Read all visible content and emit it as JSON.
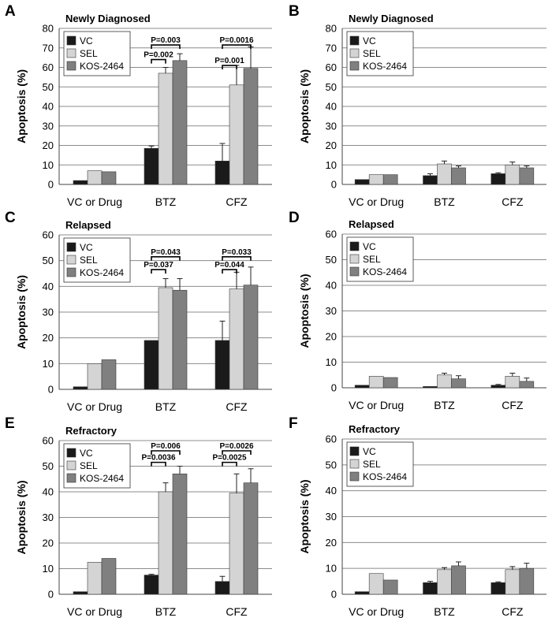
{
  "colors": {
    "VC": "#1a1a1a",
    "SEL": "#d4d4d4",
    "KOS-2464": "#808080",
    "grid": "#8c8c8c",
    "axis": "#444444"
  },
  "chart_data": [
    {
      "type": "bar",
      "panel": "A",
      "title": "Newly Diagnosed",
      "categories": [
        "VC or Drug",
        "BTZ",
        "CFZ"
      ],
      "ylabel": "Apoptosis (%)",
      "ylim": [
        0,
        80
      ],
      "yticks": [
        0,
        10,
        20,
        30,
        40,
        50,
        60,
        70,
        80
      ],
      "legend": [
        "VC",
        "SEL",
        "KOS-2464"
      ],
      "series": [
        {
          "name": "VC",
          "values": [
            2,
            18.5,
            12
          ],
          "errors": [
            0,
            1.2,
            9
          ]
        },
        {
          "name": "SEL",
          "values": [
            7,
            57,
            51
          ],
          "errors": [
            0,
            3,
            10
          ]
        },
        {
          "name": "KOS-2464",
          "values": [
            6.5,
            63.5,
            59.5
          ],
          "errors": [
            0,
            3.5,
            11
          ]
        }
      ],
      "annotations": [
        {
          "cat": 1,
          "from": 0,
          "to": 1,
          "y": 64,
          "text": "P=0.002"
        },
        {
          "cat": 1,
          "from": 0,
          "to": 2,
          "y": 71.5,
          "text": "P=0.003"
        },
        {
          "cat": 2,
          "from": 0,
          "to": 1,
          "y": 61,
          "text": "P=0.001"
        },
        {
          "cat": 2,
          "from": 0,
          "to": 2,
          "y": 71.5,
          "text": "P=0.0016"
        }
      ]
    },
    {
      "type": "bar",
      "panel": "B",
      "title": "Newly Diagnosed",
      "categories": [
        "VC or Drug",
        "BTZ",
        "CFZ"
      ],
      "ylabel": "Apoptosis (%)",
      "ylim": [
        0,
        80
      ],
      "yticks": [
        0,
        10,
        20,
        30,
        40,
        50,
        60,
        70,
        80
      ],
      "legend": [
        "VC",
        "SEL",
        "KOS-2464"
      ],
      "series": [
        {
          "name": "VC",
          "values": [
            2.5,
            4.5,
            5.5
          ],
          "errors": [
            0,
            1,
            0.5
          ]
        },
        {
          "name": "SEL",
          "values": [
            5,
            10.5,
            10
          ],
          "errors": [
            0,
            1.5,
            1.5
          ]
        },
        {
          "name": "KOS-2464",
          "values": [
            5,
            8.5,
            8.5
          ],
          "errors": [
            0,
            1,
            1
          ]
        }
      ],
      "annotations": []
    },
    {
      "type": "bar",
      "panel": "C",
      "title": "Relapsed",
      "categories": [
        "VC or Drug",
        "BTZ",
        "CFZ"
      ],
      "ylabel": "Apoptosis (%)",
      "ylim": [
        0,
        60
      ],
      "yticks": [
        0,
        10,
        20,
        30,
        40,
        50,
        60
      ],
      "legend": [
        "VC",
        "SEL",
        "KOS-2464"
      ],
      "series": [
        {
          "name": "VC",
          "values": [
            1,
            19,
            19
          ],
          "errors": [
            0,
            0,
            7.5
          ]
        },
        {
          "name": "SEL",
          "values": [
            10,
            39.5,
            39
          ],
          "errors": [
            0,
            3.5,
            6.5
          ]
        },
        {
          "name": "KOS-2464",
          "values": [
            11.5,
            38.5,
            40.5
          ],
          "errors": [
            0,
            4.5,
            7
          ]
        }
      ],
      "annotations": [
        {
          "cat": 1,
          "from": 0,
          "to": 1,
          "y": 46.5,
          "text": "P=0.037"
        },
        {
          "cat": 1,
          "from": 0,
          "to": 2,
          "y": 51.5,
          "text": "P=0.043"
        },
        {
          "cat": 2,
          "from": 0,
          "to": 1,
          "y": 46.5,
          "text": "P=0.044"
        },
        {
          "cat": 2,
          "from": 0,
          "to": 2,
          "y": 51.5,
          "text": "P=0.033"
        }
      ]
    },
    {
      "type": "bar",
      "panel": "D",
      "title": "Relapsed",
      "categories": [
        "VC or Drug",
        "BTZ",
        "CFZ"
      ],
      "ylabel": "Apoptosis (%)",
      "ylim": [
        0,
        60
      ],
      "yticks": [
        0,
        10,
        20,
        30,
        40,
        50,
        60
      ],
      "legend": [
        "VC",
        "SEL",
        "KOS-2464"
      ],
      "series": [
        {
          "name": "VC",
          "values": [
            1,
            0.5,
            1
          ],
          "errors": [
            0,
            0,
            0.3
          ]
        },
        {
          "name": "SEL",
          "values": [
            4.5,
            5,
            4.5
          ],
          "errors": [
            0,
            0.7,
            1.2
          ]
        },
        {
          "name": "KOS-2464",
          "values": [
            4,
            3.5,
            2.5
          ],
          "errors": [
            0,
            1.2,
            1.3
          ]
        }
      ],
      "annotations": []
    },
    {
      "type": "bar",
      "panel": "E",
      "title": "Refractory",
      "categories": [
        "VC or Drug",
        "BTZ",
        "CFZ"
      ],
      "ylabel": "Apoptosis (%)",
      "ylim": [
        0,
        60
      ],
      "yticks": [
        0,
        10,
        20,
        30,
        40,
        50,
        60
      ],
      "legend": [
        "VC",
        "SEL",
        "KOS-2464"
      ],
      "series": [
        {
          "name": "VC",
          "values": [
            1,
            7.5,
            5
          ],
          "errors": [
            0,
            0.3,
            2
          ]
        },
        {
          "name": "SEL",
          "values": [
            12.5,
            40,
            39.5
          ],
          "errors": [
            0,
            3.5,
            7.5
          ]
        },
        {
          "name": "KOS-2464",
          "values": [
            14,
            47,
            43.5
          ],
          "errors": [
            0,
            3,
            5.5
          ]
        }
      ],
      "annotations": [
        {
          "cat": 1,
          "from": 0,
          "to": 1,
          "y": 51.5,
          "text": "P=0.0036"
        },
        {
          "cat": 1,
          "from": 0,
          "to": 2,
          "y": 56,
          "text": "P=0.006"
        },
        {
          "cat": 2,
          "from": 0,
          "to": 1,
          "y": 51.5,
          "text": "P=0.0025"
        },
        {
          "cat": 2,
          "from": 0,
          "to": 2,
          "y": 56,
          "text": "P=0.0026"
        }
      ]
    },
    {
      "type": "bar",
      "panel": "F",
      "title": "Refractory",
      "categories": [
        "VC or Drug",
        "BTZ",
        "CFZ"
      ],
      "ylabel": "Apoptosis (%)",
      "ylim": [
        0,
        60
      ],
      "yticks": [
        0,
        10,
        20,
        30,
        40,
        50,
        60
      ],
      "legend": [
        "VC",
        "SEL",
        "KOS-2464"
      ],
      "series": [
        {
          "name": "VC",
          "values": [
            1,
            4.5,
            4.5
          ],
          "errors": [
            0,
            0.5,
            0.3
          ]
        },
        {
          "name": "SEL",
          "values": [
            8,
            9.5,
            9.5
          ],
          "errors": [
            0,
            0.8,
            1.2
          ]
        },
        {
          "name": "KOS-2464",
          "values": [
            5.5,
            11,
            10
          ],
          "errors": [
            0,
            1.5,
            2
          ]
        }
      ],
      "annotations": []
    }
  ]
}
